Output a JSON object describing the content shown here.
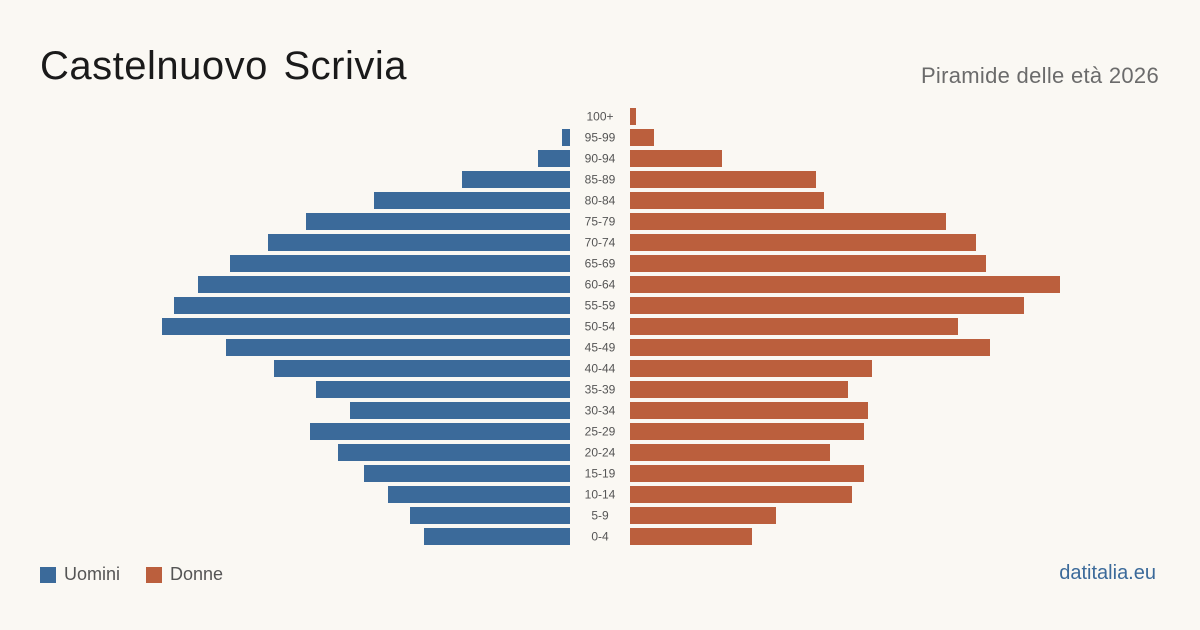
{
  "header": {
    "title": "Castelnuovo Scrivia",
    "subtitle": "Piramide delle età 2026"
  },
  "legend": {
    "men_label": "Uomini",
    "women_label": "Donne"
  },
  "footer": {
    "source": "datitalia.eu"
  },
  "colors": {
    "men": "#3b6a9a",
    "women": "#bb5f3d",
    "background": "#faf8f3"
  },
  "chart_data": {
    "type": "bar",
    "orientation": "horizontal-pyramid",
    "categories": [
      "100+",
      "95-99",
      "90-94",
      "85-89",
      "80-84",
      "75-79",
      "70-74",
      "65-69",
      "60-64",
      "55-59",
      "50-54",
      "45-49",
      "40-44",
      "35-39",
      "30-34",
      "25-29",
      "20-24",
      "15-19",
      "10-14",
      "5-9",
      "0-4"
    ],
    "series": [
      {
        "name": "Uomini",
        "values": [
          0,
          4,
          16,
          54,
          98,
          132,
          151,
          170,
          186,
          198,
          204,
          172,
          148,
          127,
          110,
          130,
          116,
          103,
          91,
          80,
          73
        ]
      },
      {
        "name": "Donne",
        "values": [
          3,
          12,
          46,
          93,
          97,
          158,
          173,
          178,
          215,
          197,
          164,
          180,
          121,
          109,
          119,
          117,
          100,
          117,
          111,
          73,
          61
        ]
      }
    ],
    "title": "Castelnuovo Scrivia",
    "subtitle": "Piramide delle età 2026",
    "xlabel": "",
    "ylabel": "",
    "xlim": [
      0,
      215
    ],
    "legend_position": "bottom-left",
    "grid": false
  }
}
